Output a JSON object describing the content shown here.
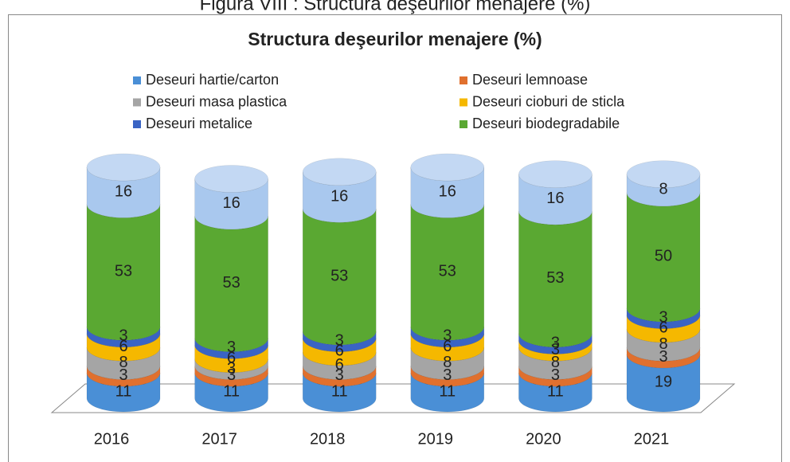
{
  "figure_title": "Figura VIII : Structura deşeurilor menajere (%)",
  "chart_data": {
    "type": "stacked_cylinder",
    "title": "Structura deşeurilor menajere (%)",
    "categories": [
      "2016",
      "2017",
      "2018",
      "2019",
      "2020",
      "2021"
    ],
    "series": [
      {
        "name": "Deseuri hartie/carton",
        "color": "#4a8fd6",
        "values": [
          11,
          11,
          11,
          11,
          11,
          19
        ]
      },
      {
        "name": "Deseuri lemnoase",
        "color": "#e0702e",
        "values": [
          3,
          3,
          3,
          3,
          3,
          3
        ]
      },
      {
        "name": "Deseuri masa plastica",
        "color": "#a5a5a5",
        "values": [
          8,
          3,
          6,
          8,
          8,
          8
        ]
      },
      {
        "name": "Deseuri cioburi de sticla",
        "color": "#f5b800",
        "values": [
          6,
          6,
          6,
          6,
          3,
          6
        ]
      },
      {
        "name": "Deseuri metalice",
        "color": "#3a64c4",
        "values": [
          3,
          3,
          3,
          3,
          3,
          3
        ]
      },
      {
        "name": "Deseuri biodegradabile",
        "color": "#5aa832",
        "values": [
          53,
          53,
          53,
          53,
          53,
          50
        ]
      },
      {
        "color": "#a9c8ee",
        "values": [
          16,
          16,
          16,
          16,
          16,
          8
        ]
      }
    ]
  }
}
